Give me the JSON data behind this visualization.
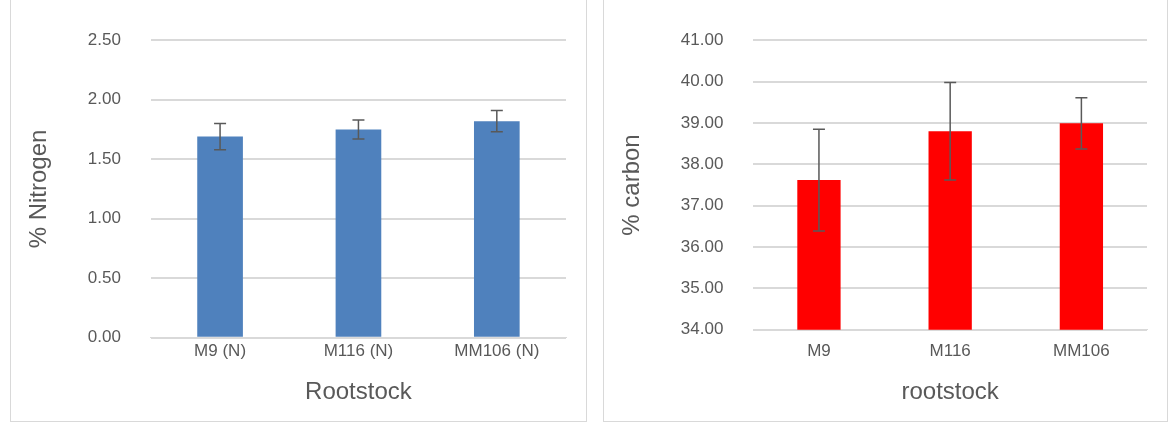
{
  "chart_data": [
    {
      "type": "bar",
      "xlabel": "Rootstock",
      "ylabel": "% Nitrogen",
      "categories": [
        "M9 (N)",
        "M116 (N)",
        "MM106 (N)"
      ],
      "values": [
        1.69,
        1.75,
        1.82
      ],
      "errors": [
        0.11,
        0.08,
        0.09
      ],
      "color": "#4f81bd",
      "ylim": [
        0,
        2.5
      ],
      "yticks": [
        {
          "value": 0,
          "label": "0.00"
        },
        {
          "value": 0.5,
          "label": "0.50"
        },
        {
          "value": 1,
          "label": "1.00"
        },
        {
          "value": 1.5,
          "label": "1.50"
        },
        {
          "value": 2,
          "label": "2.00"
        },
        {
          "value": 2.5,
          "label": "2.50"
        }
      ],
      "grid": "y"
    },
    {
      "type": "bar",
      "xlabel": "rootstock",
      "ylabel": "% carbon",
      "categories": [
        "M9",
        "M116",
        "MM106"
      ],
      "values": [
        37.62,
        38.8,
        38.99
      ],
      "errors": [
        1.23,
        1.18,
        0.62
      ],
      "color": "#ff0000",
      "ylim": [
        34,
        41
      ],
      "yticks": [
        {
          "value": 34,
          "label": "34.00"
        },
        {
          "value": 35,
          "label": "35.00"
        },
        {
          "value": 36,
          "label": "36.00"
        },
        {
          "value": 37,
          "label": "37.00"
        },
        {
          "value": 38,
          "label": "38.00"
        },
        {
          "value": 39,
          "label": "39.00"
        },
        {
          "value": 40,
          "label": "40.00"
        },
        {
          "value": 41,
          "label": "41.00"
        }
      ],
      "grid": "y"
    }
  ]
}
